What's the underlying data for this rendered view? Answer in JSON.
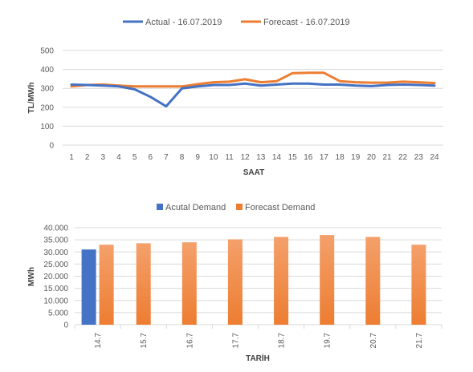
{
  "chart_data": [
    {
      "type": "line",
      "x": [
        1,
        2,
        3,
        4,
        5,
        6,
        7,
        8,
        9,
        10,
        11,
        12,
        13,
        14,
        15,
        16,
        17,
        18,
        19,
        20,
        21,
        22,
        23,
        24
      ],
      "series": [
        {
          "name": "Actual - 16.07.2019",
          "color": "#4472c4",
          "values": [
            320,
            318,
            315,
            310,
            295,
            255,
            205,
            300,
            310,
            318,
            318,
            325,
            315,
            320,
            325,
            325,
            320,
            320,
            315,
            312,
            318,
            320,
            318,
            315
          ]
        },
        {
          "name": "Forecast - 16.07.2019",
          "color": "#ed7d31",
          "values": [
            310,
            318,
            320,
            315,
            310,
            310,
            310,
            310,
            322,
            332,
            335,
            348,
            332,
            338,
            380,
            382,
            382,
            338,
            332,
            330,
            330,
            335,
            332,
            328
          ]
        }
      ],
      "xlabel": "SAAT",
      "ylabel": "TL/MWh",
      "ylim": [
        0,
        500
      ],
      "yticks": [
        "0",
        "100",
        "200",
        "300",
        "400",
        "500"
      ],
      "grid": true,
      "legend": "top"
    },
    {
      "type": "bar",
      "categories": [
        "14.7",
        "15.7",
        "16.7",
        "17.7",
        "18.7",
        "19.7",
        "20.7",
        "21.7"
      ],
      "series": [
        {
          "name": "Acutal Demand",
          "color": "#4472c4",
          "values": [
            31000,
            null,
            null,
            null,
            null,
            null,
            null,
            null
          ]
        },
        {
          "name": "Forecast Demand",
          "color": "#ed7d31",
          "values": [
            33000,
            33600,
            34000,
            35200,
            36200,
            37000,
            36200,
            33000
          ]
        }
      ],
      "xlabel": "TARİH",
      "ylabel": "MWh",
      "ylim": [
        0,
        40000
      ],
      "yticks": [
        "0",
        "5.000",
        "10.000",
        "15.000",
        "20.000",
        "25.000",
        "30.000",
        "35.000",
        "40.000"
      ],
      "grid": true,
      "legend": "top"
    }
  ]
}
